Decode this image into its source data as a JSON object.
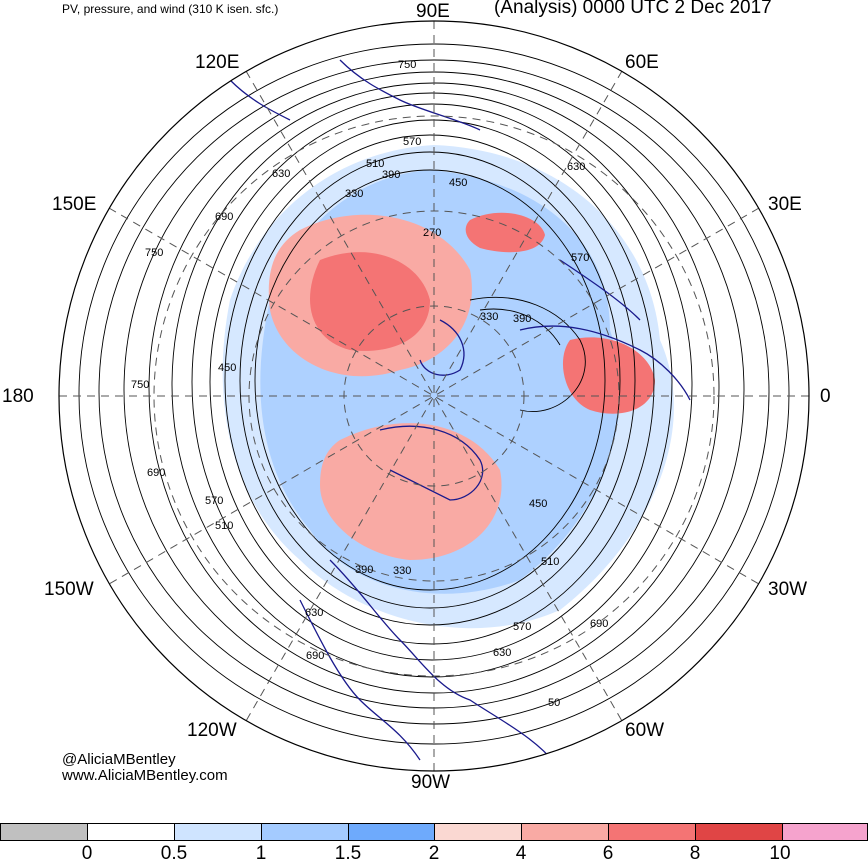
{
  "header": {
    "title": "PV, pressure, and wind (310 K isen. sfc.)",
    "valid_time": "(Analysis) 0000 UTC 2 Dec 2017"
  },
  "longitude_labels": {
    "e90": "90E",
    "e60": "60E",
    "e120": "120E",
    "e30": "30E",
    "e150": "150E",
    "deg0": "0",
    "deg180": "180",
    "w30": "30W",
    "w60": "60W",
    "w90": "90W",
    "w120": "120W",
    "w150": "150W"
  },
  "contour_labels": [
    "750",
    "570",
    "630",
    "690",
    "510",
    "390",
    "450",
    "330",
    "270",
    "630",
    "570",
    "750",
    "450",
    "330",
    "390",
    "750",
    "690",
    "570",
    "510",
    "390",
    "330",
    "510",
    "450",
    "570",
    "630",
    "690",
    "630",
    "690",
    "50"
  ],
  "credit": {
    "handle": "@AliciaMBentley",
    "site": "www.AliciaMBentley.com"
  },
  "legend": {
    "ticks": [
      "0",
      "0.5",
      "1",
      "1.5",
      "2",
      "4",
      "6",
      "8",
      "10"
    ],
    "colors": [
      "#c0c0c0",
      "#ffffff",
      "#cfe4ff",
      "#a4cbff",
      "#6eaafc",
      "#fad8d2",
      "#f9aaa4",
      "#f47474",
      "#e04545",
      "#f5a3cd"
    ]
  },
  "colors": {
    "coastline": "#1a1a8c",
    "contour": "#000000",
    "pv_low": "#a4cbff",
    "pv_high": "#f47474"
  }
}
